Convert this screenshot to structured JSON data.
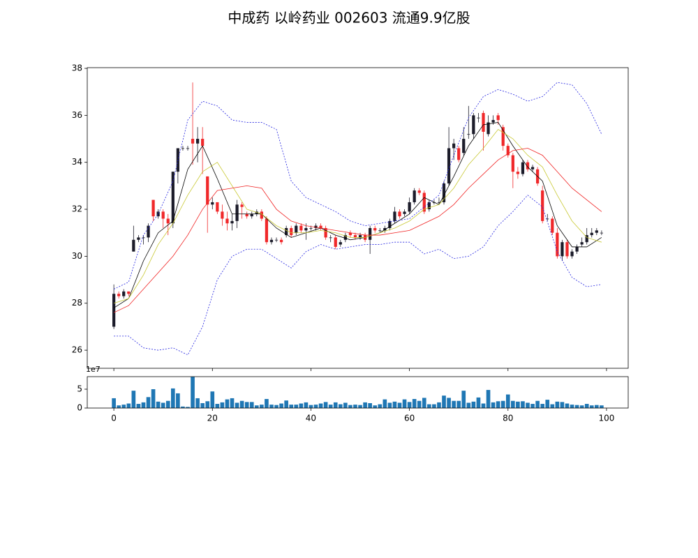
{
  "chart_data": [
    {
      "type": "candlestick",
      "title": "中成药 以岭药业 002603 流通9.9亿股",
      "x": [
        0,
        1,
        2,
        3,
        4,
        5,
        6,
        7,
        8,
        9,
        10,
        11,
        12,
        13,
        14,
        15,
        16,
        17,
        18,
        19,
        20,
        21,
        22,
        23,
        24,
        25,
        26,
        27,
        28,
        29,
        30,
        31,
        32,
        33,
        34,
        35,
        36,
        37,
        38,
        39,
        40,
        41,
        42,
        43,
        44,
        45,
        46,
        47,
        48,
        49,
        50,
        51,
        52,
        53,
        54,
        55,
        56,
        57,
        58,
        59,
        60,
        61,
        62,
        63,
        64,
        65,
        66,
        67,
        68,
        69,
        70,
        71,
        72,
        73,
        74,
        75,
        76,
        77,
        78,
        79,
        80,
        81,
        82,
        83,
        84,
        85,
        86,
        87,
        88,
        89,
        90,
        91,
        92,
        93,
        94,
        95,
        96,
        97,
        98,
        99
      ],
      "open": [
        27.0,
        28.4,
        28.3,
        28.5,
        30.2,
        30.7,
        30.8,
        30.8,
        32.4,
        31.7,
        31.9,
        31.6,
        31.4,
        33.6,
        34.6,
        34.6,
        35.0,
        34.8,
        35.0,
        33.4,
        32.2,
        32.3,
        31.9,
        31.6,
        31.4,
        31.5,
        32.2,
        31.8,
        31.7,
        31.8,
        31.9,
        31.6,
        30.6,
        30.7,
        30.7,
        30.9,
        31.2,
        31.0,
        31.3,
        31.1,
        31.2,
        31.2,
        31.3,
        31.2,
        30.8,
        30.8,
        30.5,
        30.7,
        31.0,
        30.9,
        30.8,
        30.9,
        30.7,
        31.2,
        31.1,
        31.1,
        31.2,
        31.5,
        31.9,
        31.8,
        31.9,
        32.3,
        32.8,
        32.7,
        32.0,
        32.3,
        32.3,
        32.3,
        33.1,
        34.6,
        34.6,
        34.4,
        35.2,
        35.2,
        35.9,
        36.1,
        35.2,
        35.7,
        36.0,
        35.5,
        34.7,
        34.3,
        33.6,
        33.5,
        34.0,
        33.7,
        33.7,
        32.8,
        31.6,
        31.6,
        31.0,
        30.0,
        30.6,
        30.0,
        30.2,
        30.5,
        30.6,
        30.9,
        31.0,
        31.0
      ],
      "high": [
        28.8,
        28.5,
        28.6,
        28.5,
        31.3,
        30.9,
        30.9,
        31.4,
        32.4,
        32.0,
        32.0,
        31.8,
        33.6,
        34.6,
        34.7,
        34.7,
        37.4,
        35.5,
        35.5,
        33.4,
        32.5,
        32.3,
        32.2,
        31.9,
        31.8,
        32.4,
        32.3,
        31.9,
        31.9,
        32.0,
        32.0,
        31.7,
        30.8,
        30.8,
        30.8,
        31.3,
        31.3,
        31.4,
        31.4,
        31.4,
        31.3,
        31.4,
        31.4,
        31.3,
        30.9,
        30.9,
        30.7,
        31.0,
        31.1,
        31.0,
        31.0,
        31.0,
        31.3,
        31.3,
        31.2,
        31.3,
        31.6,
        32.1,
        32.0,
        32.0,
        32.5,
        32.9,
        32.9,
        32.8,
        32.4,
        32.4,
        32.5,
        33.2,
        35.5,
        35.0,
        34.7,
        35.5,
        36.4,
        36.1,
        36.1,
        36.2,
        36.0,
        36.0,
        36.1,
        35.6,
        34.8,
        34.4,
        33.8,
        34.1,
        34.1,
        33.9,
        33.8,
        33.0,
        31.8,
        31.7,
        31.2,
        30.7,
        30.7,
        30.3,
        30.5,
        30.8,
        31.2,
        31.2,
        31.2,
        31.1
      ],
      "low": [
        26.9,
        28.2,
        28.2,
        28.3,
        30.2,
        30.6,
        30.5,
        30.6,
        31.5,
        31.6,
        31.2,
        30.9,
        31.2,
        33.1,
        34.5,
        34.5,
        33.9,
        34.0,
        33.5,
        31.0,
        32.0,
        31.8,
        31.3,
        31.1,
        31.1,
        31.2,
        31.6,
        31.6,
        31.6,
        31.7,
        31.5,
        30.5,
        30.5,
        30.6,
        30.5,
        30.8,
        30.8,
        30.9,
        31.0,
        30.7,
        31.1,
        31.1,
        31.1,
        30.7,
        30.6,
        30.3,
        30.4,
        30.6,
        30.8,
        30.7,
        30.7,
        30.6,
        30.1,
        31.0,
        31.0,
        31.0,
        31.1,
        31.4,
        31.6,
        31.7,
        31.8,
        32.2,
        32.6,
        31.8,
        31.9,
        32.2,
        32.2,
        32.2,
        33.0,
        34.1,
        34.0,
        34.3,
        35.0,
        35.0,
        35.7,
        34.5,
        35.1,
        35.6,
        35.6,
        34.5,
        34.2,
        32.9,
        33.3,
        33.4,
        33.6,
        33.6,
        33.0,
        31.4,
        31.5,
        30.9,
        29.9,
        29.8,
        29.9,
        29.9,
        30.1,
        30.4,
        30.5,
        30.8,
        30.9,
        30.9
      ],
      "close": [
        28.4,
        28.3,
        28.5,
        28.4,
        30.7,
        30.8,
        30.8,
        31.3,
        31.7,
        31.9,
        31.6,
        31.4,
        33.6,
        34.6,
        34.6,
        34.6,
        34.8,
        35.0,
        34.7,
        32.2,
        32.3,
        31.9,
        31.6,
        31.4,
        31.5,
        32.2,
        32.1,
        31.7,
        31.8,
        31.9,
        31.6,
        30.6,
        30.7,
        30.7,
        30.6,
        31.2,
        30.9,
        31.3,
        31.1,
        31.2,
        31.2,
        31.3,
        31.2,
        30.8,
        30.8,
        30.4,
        30.6,
        30.9,
        30.9,
        30.8,
        30.9,
        30.7,
        31.2,
        31.1,
        31.1,
        31.2,
        31.5,
        31.9,
        31.7,
        31.9,
        32.3,
        32.8,
        32.7,
        31.9,
        32.3,
        32.3,
        32.3,
        33.1,
        34.6,
        34.8,
        34.1,
        35.0,
        35.2,
        36.0,
        35.9,
        35.3,
        35.7,
        35.8,
        35.8,
        34.7,
        34.3,
        33.6,
        33.5,
        34.0,
        33.7,
        33.8,
        33.1,
        31.5,
        31.6,
        31.0,
        30.0,
        30.6,
        30.0,
        30.2,
        30.4,
        30.6,
        30.9,
        31.0,
        31.1,
        31.0
      ],
      "color_up": "#1c1c2a",
      "color_down": "#f0282a",
      "line_x": [
        0,
        3,
        6,
        9,
        12,
        15,
        18,
        21,
        24,
        27,
        30,
        33,
        36,
        39,
        42,
        45,
        48,
        51,
        54,
        57,
        60,
        63,
        66,
        69,
        72,
        75,
        78,
        81,
        84,
        87,
        90,
        93,
        96,
        99
      ],
      "lines": [
        {
          "color": "#000000",
          "style": "solid",
          "values": [
            27.8,
            28.2,
            29.8,
            31.0,
            31.5,
            33.7,
            34.7,
            33.3,
            31.8,
            31.8,
            31.8,
            31.2,
            30.8,
            31.0,
            31.2,
            30.9,
            30.7,
            30.8,
            31.0,
            31.4,
            31.8,
            32.5,
            32.2,
            33.4,
            34.7,
            35.6,
            35.7,
            34.7,
            33.8,
            33.2,
            31.3,
            30.4,
            30.4,
            30.8
          ]
        },
        {
          "color": "#c8c832",
          "style": "solid",
          "values": [
            28.0,
            28.2,
            29.2,
            30.5,
            31.4,
            32.6,
            33.6,
            34.0,
            33.0,
            32.0,
            31.8,
            31.3,
            31.0,
            31.0,
            31.1,
            31.0,
            30.8,
            30.8,
            31.0,
            31.2,
            31.5,
            32.0,
            32.2,
            32.9,
            33.9,
            34.6,
            35.4,
            35.0,
            34.3,
            33.8,
            32.6,
            31.5,
            30.8,
            30.6
          ]
        },
        {
          "color": "#f02020",
          "style": "solid",
          "values": [
            27.6,
            27.9,
            28.6,
            29.3,
            30.0,
            30.9,
            32.0,
            32.8,
            32.9,
            33.0,
            32.9,
            32.0,
            31.5,
            31.3,
            31.2,
            31.1,
            31.0,
            30.9,
            30.9,
            31.0,
            31.1,
            31.4,
            31.7,
            32.2,
            32.9,
            33.5,
            34.1,
            34.5,
            34.6,
            34.3,
            33.6,
            32.9,
            32.4,
            31.9
          ]
        },
        {
          "color": "#2020e0",
          "style": "dashed",
          "values": [
            28.6,
            28.9,
            30.9,
            31.8,
            33.2,
            35.8,
            36.6,
            36.4,
            35.8,
            35.7,
            35.7,
            35.4,
            33.2,
            32.5,
            32.2,
            31.9,
            31.5,
            31.3,
            31.4,
            31.5,
            31.6,
            32.1,
            32.6,
            34.3,
            35.9,
            36.8,
            37.1,
            36.9,
            36.6,
            36.8,
            37.4,
            37.3,
            36.5,
            35.2
          ]
        },
        {
          "color": "#2020e0",
          "style": "dashed",
          "values": [
            26.6,
            26.6,
            26.1,
            26.0,
            26.1,
            25.8,
            27.0,
            29.0,
            30.0,
            30.3,
            30.3,
            29.9,
            29.5,
            30.2,
            30.5,
            30.3,
            30.4,
            30.5,
            30.5,
            30.6,
            30.6,
            30.1,
            30.3,
            29.9,
            30.0,
            30.4,
            31.3,
            31.9,
            32.6,
            32.1,
            30.2,
            29.1,
            28.7,
            28.8
          ]
        }
      ],
      "xlim": [
        -5.4,
        104.4
      ],
      "xticks": [
        0,
        20,
        40,
        60,
        80,
        100
      ],
      "ylim": [
        25.23,
        38.03
      ],
      "yticks": [
        26,
        28,
        30,
        32,
        34,
        36,
        38
      ]
    },
    {
      "type": "bar",
      "x": [
        0,
        1,
        2,
        3,
        4,
        5,
        6,
        7,
        8,
        9,
        10,
        11,
        12,
        13,
        14,
        15,
        16,
        17,
        18,
        19,
        20,
        21,
        22,
        23,
        24,
        25,
        26,
        27,
        28,
        29,
        30,
        31,
        32,
        33,
        34,
        35,
        36,
        37,
        38,
        39,
        40,
        41,
        42,
        43,
        44,
        45,
        46,
        47,
        48,
        49,
        50,
        51,
        52,
        53,
        54,
        55,
        56,
        57,
        58,
        59,
        60,
        61,
        62,
        63,
        64,
        65,
        66,
        67,
        68,
        69,
        70,
        71,
        72,
        73,
        74,
        75,
        76,
        77,
        78,
        79,
        80,
        81,
        82,
        83,
        84,
        85,
        86,
        87,
        88,
        89,
        90,
        91,
        92,
        93,
        94,
        95,
        96,
        97,
        98,
        99
      ],
      "values": [
        2.6,
        0.7,
        0.9,
        1.2,
        4.6,
        1.1,
        1.5,
        2.9,
        5.0,
        1.7,
        1.4,
        1.9,
        5.2,
        3.9,
        0.4,
        0.3,
        8.3,
        2.6,
        1.3,
        1.8,
        4.4,
        1.1,
        1.5,
        2.3,
        2.6,
        1.4,
        1.9,
        1.6,
        1.6,
        0.7,
        0.9,
        2.4,
        0.9,
        0.8,
        1.2,
        2.0,
        0.9,
        0.9,
        1.2,
        1.5,
        0.8,
        0.9,
        1.2,
        1.6,
        0.9,
        1.5,
        1.0,
        1.4,
        0.8,
        0.9,
        0.8,
        1.5,
        1.3,
        0.7,
        1.0,
        2.3,
        1.4,
        1.7,
        1.4,
        2.3,
        1.6,
        2.4,
        1.9,
        2.7,
        1.0,
        1.0,
        1.5,
        3.3,
        2.7,
        1.9,
        1.9,
        4.6,
        1.4,
        1.7,
        2.8,
        1.2,
        4.8,
        1.5,
        1.8,
        1.9,
        3.6,
        1.9,
        1.7,
        1.8,
        1.4,
        1.1,
        1.9,
        1.1,
        2.2,
        1.0,
        1.7,
        1.6,
        1.2,
        0.9,
        0.8,
        0.7,
        1.1,
        0.7,
        0.8,
        0.7
      ],
      "color": "#1f77b4",
      "offset_label": "1e7",
      "xlim": [
        -5.4,
        104.4
      ],
      "xticks": [
        0,
        20,
        40,
        60,
        80,
        100
      ],
      "ylim": [
        0,
        8.33
      ],
      "yticks": [
        0,
        5
      ]
    }
  ]
}
